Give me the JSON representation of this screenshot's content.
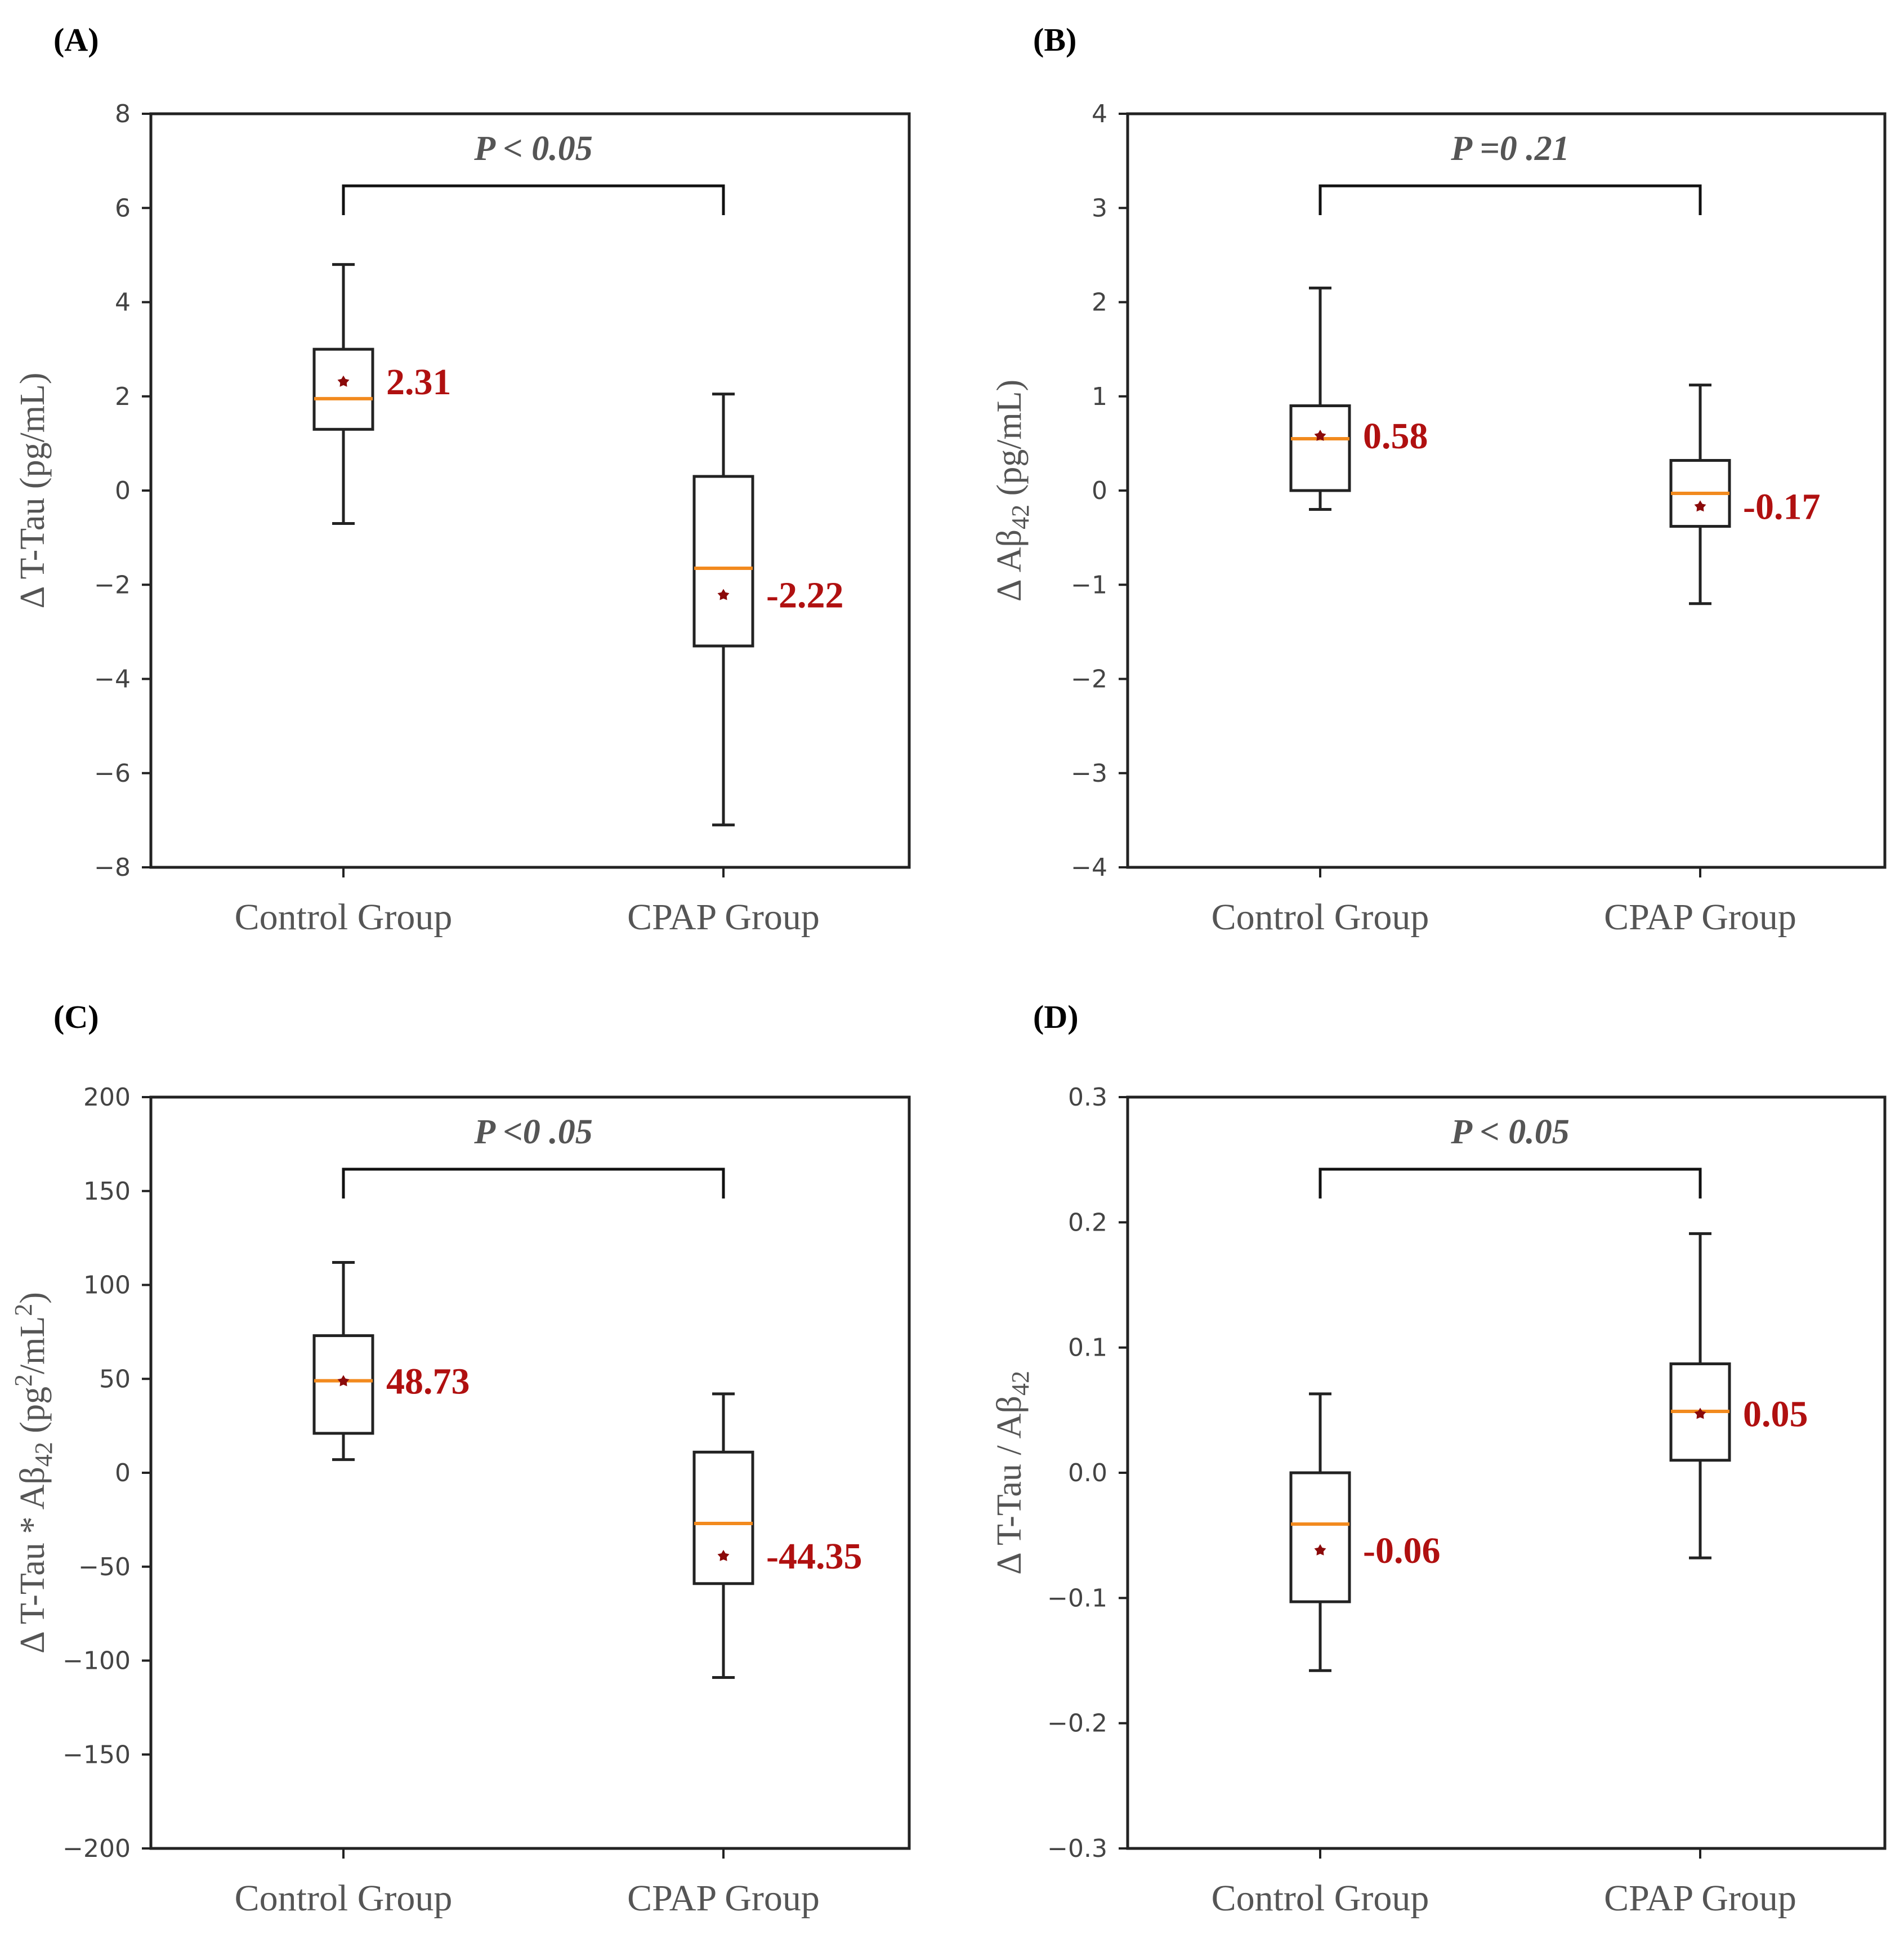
{
  "chart_data": [
    {
      "type": "box",
      "panel_label": "(A)",
      "categories": [
        "Control Group",
        "CPAP Group"
      ],
      "ylabel": {
        "main": "Δ T-Tau (pg/mL)"
      },
      "ylim": [
        -8,
        8
      ],
      "yticks": [
        -8,
        -6,
        -4,
        -2,
        0,
        2,
        4,
        6,
        8
      ],
      "ytick_labels": [
        "−8",
        "−6",
        "−4",
        "−2",
        "0",
        "2",
        "4",
        "6",
        "8"
      ],
      "significance": "P < 0.05",
      "boxes": [
        {
          "name": "Control Group",
          "whisker_low": -0.7,
          "q1": 1.3,
          "median": 1.95,
          "q3": 3.0,
          "whisker_high": 4.8,
          "mean": 2.31,
          "mean_label": "2.31"
        },
        {
          "name": "CPAP Group",
          "whisker_low": -7.1,
          "q1": -3.3,
          "median": -1.65,
          "q3": 0.3,
          "whisker_high": 2.05,
          "mean": -2.22,
          "mean_label": "-2.22"
        }
      ]
    },
    {
      "type": "box",
      "panel_label": "(B)",
      "categories": [
        "Control Group",
        "CPAP Group"
      ],
      "ylabel": {
        "main": "Δ Aβ",
        "sub": "42",
        "tail": " (pg/mL)"
      },
      "ylim": [
        -4,
        4
      ],
      "yticks": [
        -4,
        -3,
        -2,
        -1,
        0,
        1,
        2,
        3,
        4
      ],
      "ytick_labels": [
        "−4",
        "−3",
        "−2",
        "−1",
        "0",
        "1",
        "2",
        "3",
        "4"
      ],
      "significance": "P =0 .21",
      "boxes": [
        {
          "name": "Control Group",
          "whisker_low": -0.2,
          "q1": 0.0,
          "median": 0.55,
          "q3": 0.9,
          "whisker_high": 2.15,
          "mean": 0.58,
          "mean_label": "0.58"
        },
        {
          "name": "CPAP Group",
          "whisker_low": -1.2,
          "q1": -0.38,
          "median": -0.03,
          "q3": 0.32,
          "whisker_high": 1.12,
          "mean": -0.17,
          "mean_label": "-0.17"
        }
      ]
    },
    {
      "type": "box",
      "panel_label": "(C)",
      "categories": [
        "Control Group",
        "CPAP Group"
      ],
      "ylabel": {
        "main": "Δ T-Tau * Aβ",
        "sub": "42",
        "tail": " (pg",
        "sup": "2",
        "tail2": "/mL",
        "sup2": "2",
        "tail3": ")"
      },
      "ylim": [
        -200,
        200
      ],
      "yticks": [
        -200,
        -150,
        -100,
        -50,
        0,
        50,
        100,
        150,
        200
      ],
      "ytick_labels": [
        "−200",
        "−150",
        "−100",
        "−50",
        "0",
        "50",
        "100",
        "150",
        "200"
      ],
      "significance": "P <0 .05",
      "boxes": [
        {
          "name": "Control Group",
          "whisker_low": 7,
          "q1": 21,
          "median": 49,
          "q3": 73,
          "whisker_high": 112,
          "mean": 48.73,
          "mean_label": "48.73"
        },
        {
          "name": "CPAP Group",
          "whisker_low": -109,
          "q1": -59,
          "median": -27,
          "q3": 11,
          "whisker_high": 42,
          "mean": -44.35,
          "mean_label": "-44.35"
        }
      ]
    },
    {
      "type": "box",
      "panel_label": "(D)",
      "categories": [
        "Control Group",
        "CPAP Group"
      ],
      "ylabel": {
        "main": "Δ T-Tau / Aβ",
        "sub": "42"
      },
      "ylim": [
        -0.3,
        0.3
      ],
      "yticks": [
        -0.3,
        -0.2,
        -0.1,
        0.0,
        0.1,
        0.2,
        0.3
      ],
      "ytick_labels": [
        "−0.3",
        "−0.2",
        "−0.1",
        "0.0",
        "0.1",
        "0.2",
        "0.3"
      ],
      "significance": "P < 0.05",
      "boxes": [
        {
          "name": "Control Group",
          "whisker_low": -0.158,
          "q1": -0.103,
          "median": -0.041,
          "q3": 0.0,
          "whisker_high": 0.063,
          "mean": -0.062,
          "mean_label": "-0.06"
        },
        {
          "name": "CPAP Group",
          "whisker_low": -0.068,
          "q1": 0.01,
          "median": 0.049,
          "q3": 0.087,
          "whisker_high": 0.191,
          "mean": 0.047,
          "mean_label": "0.05"
        }
      ]
    }
  ]
}
